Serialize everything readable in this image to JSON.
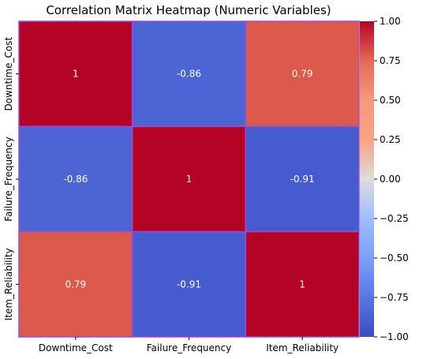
{
  "chart_data": {
    "type": "heatmap",
    "title": "Correlation Matrix Heatmap (Numeric Variables)",
    "x_categories": [
      "Downtime_Cost",
      "Failure_Frequency",
      "Item_Reliability"
    ],
    "y_categories": [
      "Downtime_Cost",
      "Failure_Frequency",
      "Item_Reliability"
    ],
    "values": [
      [
        1,
        -0.86,
        0.79
      ],
      [
        -0.86,
        1,
        -0.91
      ],
      [
        0.79,
        -0.91,
        1
      ]
    ],
    "cell_labels": [
      [
        "1",
        "-0.86",
        "0.79"
      ],
      [
        "-0.86",
        "1",
        "-0.91"
      ],
      [
        "0.79",
        "-0.91",
        "1"
      ]
    ],
    "colorbar": {
      "range": [
        -1.0,
        1.0
      ],
      "colormap": "coolwarm",
      "ticks": [
        1.0,
        0.75,
        0.5,
        0.25,
        0.0,
        -0.25,
        -0.5,
        -0.75,
        -1.0
      ],
      "tick_labels": [
        "1.00",
        "0.75",
        "0.50",
        "0.25",
        "0.00",
        "−0.25",
        "−0.50",
        "−0.75",
        "−1.00"
      ]
    },
    "cell_border_color": "#9a4bd8"
  }
}
